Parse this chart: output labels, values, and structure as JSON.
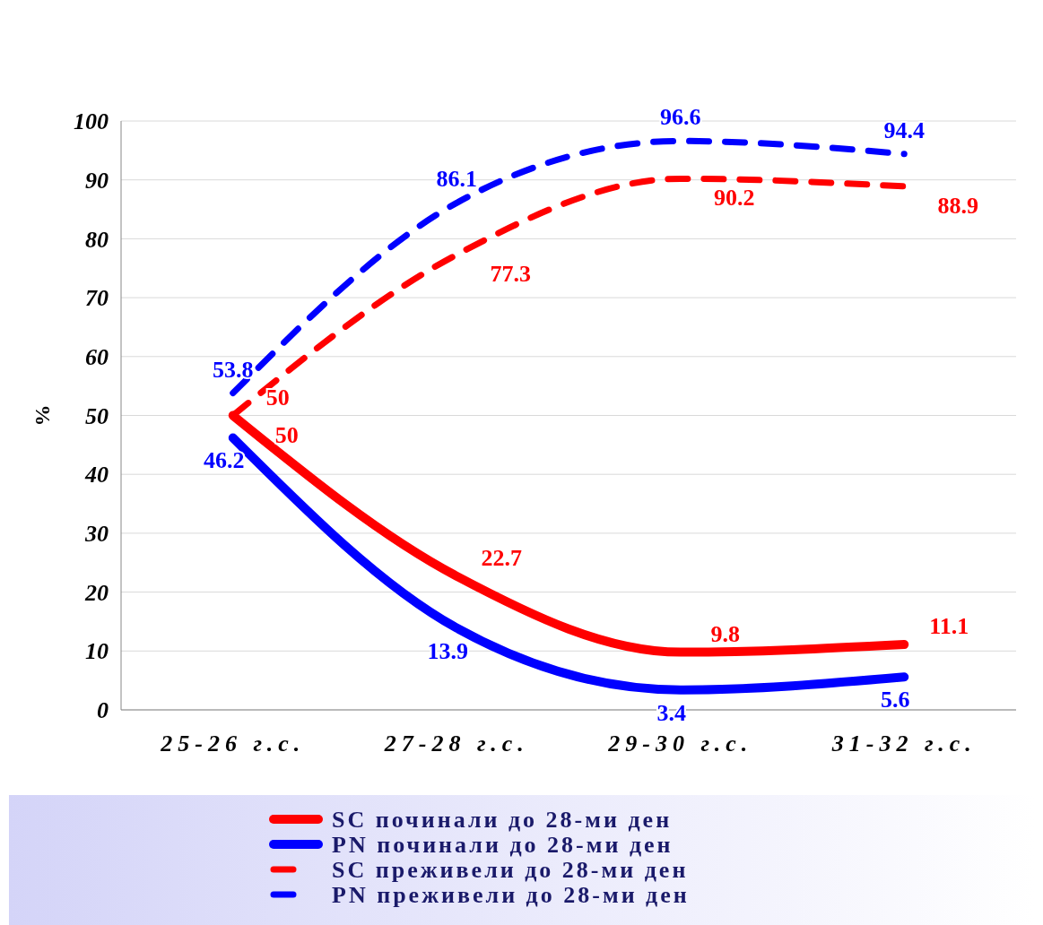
{
  "chart_data": {
    "type": "line",
    "ylabel": "%",
    "categories": [
      "25-26 г.с.",
      "27-28 г.с.",
      "29-30 г.с.",
      "31-32 г.с."
    ],
    "series": [
      {
        "name": "SC починали до 28-ми ден",
        "color": "#ff0000",
        "values": [
          50,
          22.7,
          9.8,
          11.1
        ],
        "line_style": "solid"
      },
      {
        "name": "PN починали до 28-ми ден",
        "color": "#0000ff",
        "values": [
          46.2,
          13.9,
          3.4,
          5.6
        ],
        "line_style": "solid"
      },
      {
        "name": "SC преживели до 28-ми ден",
        "color": "#ff0000",
        "values": [
          50,
          77.3,
          90.2,
          88.9
        ],
        "line_style": "dashed"
      },
      {
        "name": "PN преживели до 28-ми ден",
        "color": "#0000ff",
        "values": [
          53.8,
          86.1,
          96.6,
          94.4
        ],
        "line_style": "dashed"
      }
    ],
    "ylim": [
      0,
      100
    ],
    "yticks": [
      0,
      10,
      20,
      30,
      40,
      50,
      60,
      70,
      80,
      90,
      100
    ],
    "grid": "y",
    "legend": "bottom",
    "data_labels": true
  }
}
